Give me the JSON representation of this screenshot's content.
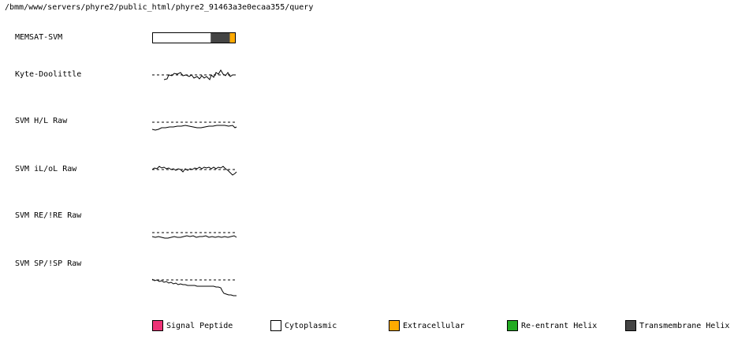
{
  "path": "/bmm/www/servers/phyre2/public_html/phyre2_91463a3e0ecaa355/query",
  "tracks": [
    {
      "label": "MEMSAT-SVM"
    },
    {
      "label": "Kyte-Doolittle"
    },
    {
      "label": "SVM H/L Raw"
    },
    {
      "label": "SVM iL/oL Raw"
    },
    {
      "label": "SVM RE/!RE Raw"
    },
    {
      "label": "SVM SP/!SP Raw"
    }
  ],
  "memsat": {
    "segments": [
      {
        "type": "Cytoplasmic",
        "start": 0.0,
        "end": 0.7
      },
      {
        "type": "Transmembrane Helix",
        "start": 0.7,
        "end": 0.93
      },
      {
        "type": "Extracellular",
        "start": 0.93,
        "end": 1.0
      }
    ]
  },
  "legend": [
    {
      "label": "Signal Peptide",
      "color": "#ee3377"
    },
    {
      "label": "Cytoplasmic",
      "color": "#ffffff"
    },
    {
      "label": "Extracellular",
      "color": "#ffaa00"
    },
    {
      "label": "Re-entrant Helix",
      "color": "#22aa22"
    },
    {
      "label": "Transmembrane Helix",
      "color": "#444444"
    }
  ]
}
